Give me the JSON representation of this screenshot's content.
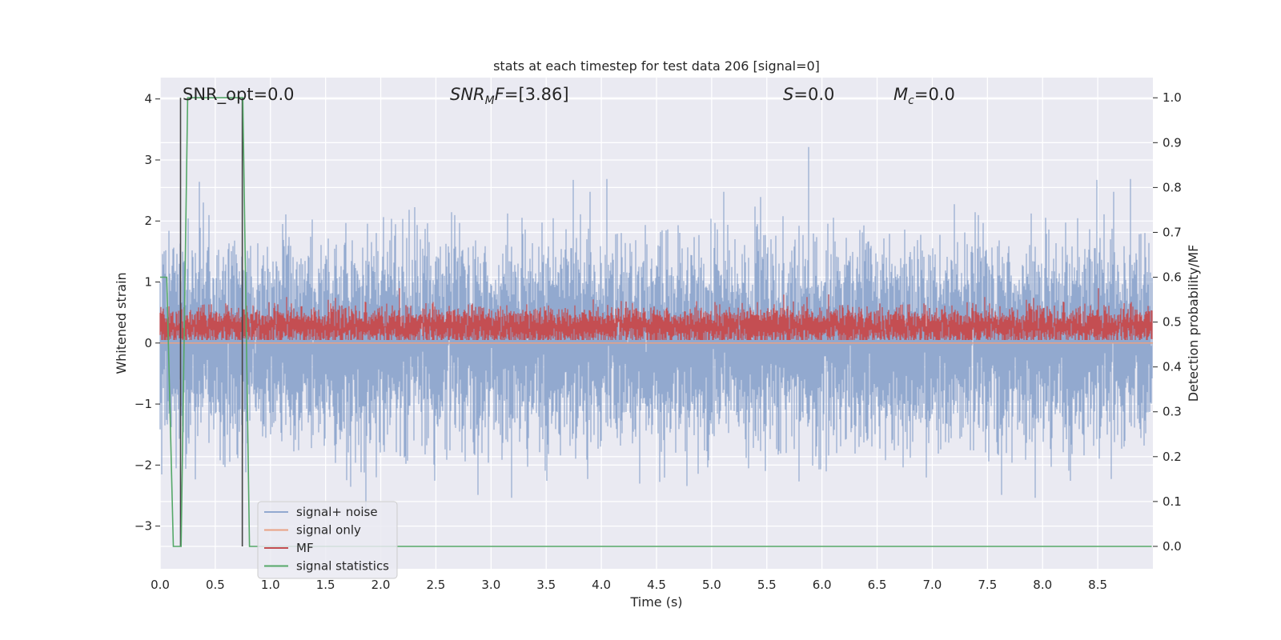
{
  "chart_data": {
    "type": "line",
    "title": "stats at each timestep for test data 206 [signal=0]",
    "xlabel": "Time (s)",
    "ylabel": "Whitened strain",
    "ylabel_right": "Detection probability/MF",
    "xlim": [
      0,
      9.0
    ],
    "ylim": [
      -3.7,
      4.35
    ],
    "ylim_right": [
      -0.05,
      1.045
    ],
    "x_ticks": [
      "0.0",
      "0.5",
      "1.0",
      "1.5",
      "2.0",
      "2.5",
      "3.0",
      "3.5",
      "4.0",
      "4.5",
      "5.0",
      "5.5",
      "6.0",
      "6.5",
      "7.0",
      "7.5",
      "8.0",
      "8.5"
    ],
    "y_ticks": [
      "4",
      "3",
      "2",
      "1",
      "0",
      "−1",
      "−2",
      "−3"
    ],
    "y_ticks_right": [
      "1.0",
      "0.9",
      "0.8",
      "0.7",
      "0.6",
      "0.5",
      "0.4",
      "0.3",
      "0.2",
      "0.1",
      "0.0"
    ],
    "grid": true,
    "legend_position": "lower-left",
    "annotations": [
      {
        "prefix": "SNR_opt=",
        "italic": "",
        "sub": "",
        "value": "0.0"
      },
      {
        "prefix": "",
        "italic": "SNR",
        "sub": "M",
        "mid": "F=",
        "value": "[3.86]"
      },
      {
        "prefix": "",
        "italic": "S",
        "sub": "",
        "mid": "=",
        "value": "0.0"
      },
      {
        "prefix": "",
        "italic": "M",
        "sub": "c",
        "mid": "=",
        "value": "0.0"
      }
    ],
    "series": [
      {
        "name": "signal+ noise",
        "color": "#92a9cf",
        "axis": "left",
        "description_values": {
          "range": [
            -3.3,
            4.0
          ],
          "sample_rate_hz": 2048
        }
      },
      {
        "name": "signal only",
        "color": "#e8a184",
        "axis": "left",
        "values_constant": 0.0
      },
      {
        "name": "MF",
        "color": "#c44e52",
        "axis": "right",
        "description_values": {
          "center": 0.49,
          "range": [
            0.46,
            0.6
          ]
        }
      },
      {
        "name": "signal statistics",
        "color": "#55a868",
        "axis": "right",
        "x": [
          0.0,
          0.06,
          0.12,
          0.19,
          0.25,
          0.62,
          0.75,
          0.81,
          0.87,
          8.99
        ],
        "values": [
          0.6,
          0.6,
          0.0,
          0.0,
          1.0,
          1.0,
          1.0,
          0.0,
          0.0,
          0.0
        ]
      }
    ],
    "vlines": [
      {
        "x": 0.185,
        "y_range": [
          0.0,
          1.0
        ],
        "color": "#444444"
      },
      {
        "x": 0.745,
        "y_range": [
          0.0,
          1.0
        ],
        "color": "#444444"
      }
    ]
  }
}
